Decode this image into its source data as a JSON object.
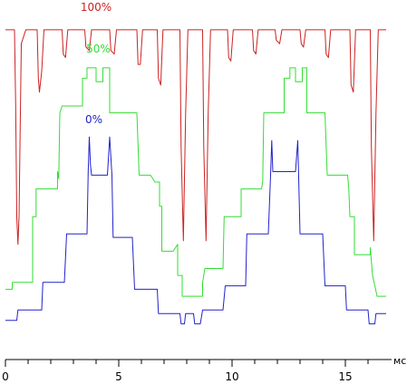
{
  "chart_data": {
    "type": "line",
    "title": "",
    "xlabel": "мс",
    "ylabel": "",
    "xlim": [
      0,
      16.8
    ],
    "ylim": [
      0,
      100
    ],
    "grid": false,
    "x_ticks": [
      0,
      5,
      10,
      15
    ],
    "series": [
      {
        "name": "100%",
        "color": "#cc2222",
        "points": [
          [
            0.0,
            94
          ],
          [
            0.4,
            94
          ],
          [
            0.45,
            72
          ],
          [
            0.5,
            40
          ],
          [
            0.55,
            32
          ],
          [
            0.6,
            40
          ],
          [
            0.7,
            90
          ],
          [
            0.9,
            94
          ],
          [
            1.4,
            94
          ],
          [
            1.45,
            80
          ],
          [
            1.5,
            76
          ],
          [
            1.6,
            82
          ],
          [
            1.7,
            94
          ],
          [
            2.5,
            94
          ],
          [
            2.55,
            87
          ],
          [
            2.65,
            86
          ],
          [
            2.75,
            94
          ],
          [
            3.5,
            94
          ],
          [
            3.55,
            89
          ],
          [
            3.7,
            88
          ],
          [
            3.8,
            94
          ],
          [
            4.6,
            94
          ],
          [
            4.65,
            88
          ],
          [
            4.8,
            87
          ],
          [
            4.9,
            94
          ],
          [
            5.8,
            94
          ],
          [
            5.85,
            84
          ],
          [
            5.95,
            84
          ],
          [
            6.05,
            94
          ],
          [
            6.7,
            94
          ],
          [
            6.75,
            80
          ],
          [
            6.85,
            78
          ],
          [
            6.95,
            94
          ],
          [
            7.7,
            94
          ],
          [
            7.75,
            60
          ],
          [
            7.85,
            33
          ],
          [
            7.95,
            70
          ],
          [
            8.05,
            94
          ],
          [
            8.7,
            94
          ],
          [
            8.75,
            60
          ],
          [
            8.85,
            33
          ],
          [
            8.95,
            70
          ],
          [
            9.05,
            94
          ],
          [
            9.8,
            94
          ],
          [
            9.85,
            86
          ],
          [
            9.95,
            85
          ],
          [
            10.05,
            94
          ],
          [
            10.9,
            94
          ],
          [
            10.95,
            88
          ],
          [
            11.05,
            87
          ],
          [
            11.15,
            94
          ],
          [
            11.9,
            94
          ],
          [
            11.95,
            91
          ],
          [
            12.1,
            90
          ],
          [
            12.2,
            94
          ],
          [
            13.0,
            94
          ],
          [
            13.05,
            90
          ],
          [
            13.15,
            89
          ],
          [
            13.25,
            94
          ],
          [
            14.1,
            94
          ],
          [
            14.15,
            87
          ],
          [
            14.25,
            86
          ],
          [
            14.35,
            94
          ],
          [
            15.2,
            94
          ],
          [
            15.25,
            78
          ],
          [
            15.35,
            76
          ],
          [
            15.45,
            94
          ],
          [
            16.1,
            94
          ],
          [
            16.15,
            60
          ],
          [
            16.25,
            33
          ],
          [
            16.35,
            70
          ],
          [
            16.45,
            94
          ],
          [
            16.8,
            94
          ]
        ]
      },
      {
        "name": "50%",
        "color": "#33dd33",
        "points": [
          [
            0.0,
            19
          ],
          [
            0.3,
            19
          ],
          [
            0.3,
            21
          ],
          [
            1.2,
            21
          ],
          [
            1.2,
            40
          ],
          [
            1.35,
            40
          ],
          [
            1.35,
            48
          ],
          [
            2.3,
            48
          ],
          [
            2.3,
            53
          ],
          [
            2.35,
            51
          ],
          [
            2.4,
            70
          ],
          [
            2.5,
            72
          ],
          [
            3.4,
            72
          ],
          [
            3.4,
            80
          ],
          [
            3.6,
            80
          ],
          [
            3.6,
            83
          ],
          [
            4.0,
            83
          ],
          [
            4.0,
            79
          ],
          [
            4.3,
            79
          ],
          [
            4.3,
            83
          ],
          [
            4.6,
            83
          ],
          [
            4.6,
            70
          ],
          [
            5.8,
            70
          ],
          [
            5.9,
            52
          ],
          [
            6.4,
            52
          ],
          [
            6.6,
            50
          ],
          [
            6.8,
            50
          ],
          [
            6.8,
            43
          ],
          [
            6.9,
            43
          ],
          [
            6.9,
            30
          ],
          [
            7.4,
            30
          ],
          [
            7.6,
            32
          ],
          [
            7.6,
            23
          ],
          [
            7.8,
            23
          ],
          [
            7.8,
            17
          ],
          [
            8.7,
            17
          ],
          [
            8.7,
            21
          ],
          [
            8.8,
            25
          ],
          [
            9.6,
            25
          ],
          [
            9.65,
            40
          ],
          [
            10.4,
            40
          ],
          [
            10.4,
            48
          ],
          [
            11.3,
            48
          ],
          [
            11.35,
            50
          ],
          [
            11.4,
            70
          ],
          [
            12.3,
            70
          ],
          [
            12.3,
            80
          ],
          [
            12.55,
            80
          ],
          [
            12.55,
            83
          ],
          [
            12.8,
            83
          ],
          [
            12.8,
            79
          ],
          [
            13.1,
            79
          ],
          [
            13.1,
            83
          ],
          [
            13.3,
            83
          ],
          [
            13.3,
            70
          ],
          [
            14.1,
            70
          ],
          [
            14.2,
            52
          ],
          [
            15.1,
            52
          ],
          [
            15.15,
            48
          ],
          [
            15.2,
            40
          ],
          [
            15.4,
            40
          ],
          [
            15.4,
            29
          ],
          [
            16.1,
            29
          ],
          [
            16.1,
            31
          ],
          [
            16.2,
            23
          ],
          [
            16.4,
            17
          ],
          [
            16.8,
            17
          ]
        ]
      },
      {
        "name": "0%",
        "color": "#2222cc",
        "points": [
          [
            0.0,
            10
          ],
          [
            0.5,
            10
          ],
          [
            0.55,
            13
          ],
          [
            1.6,
            13
          ],
          [
            1.65,
            21
          ],
          [
            2.6,
            21
          ],
          [
            2.7,
            35
          ],
          [
            3.6,
            35
          ],
          [
            3.65,
            53
          ],
          [
            3.7,
            63
          ],
          [
            3.75,
            55
          ],
          [
            3.8,
            52
          ],
          [
            4.5,
            52
          ],
          [
            4.6,
            63
          ],
          [
            4.7,
            52
          ],
          [
            4.75,
            34
          ],
          [
            5.6,
            34
          ],
          [
            5.7,
            19
          ],
          [
            6.7,
            19
          ],
          [
            6.75,
            12
          ],
          [
            7.7,
            12
          ],
          [
            7.75,
            9
          ],
          [
            7.9,
            9
          ],
          [
            7.95,
            12
          ],
          [
            8.3,
            12
          ],
          [
            8.35,
            9
          ],
          [
            8.6,
            9
          ],
          [
            8.7,
            13
          ],
          [
            9.6,
            13
          ],
          [
            9.7,
            20
          ],
          [
            10.6,
            20
          ],
          [
            10.65,
            35
          ],
          [
            11.6,
            35
          ],
          [
            11.7,
            52
          ],
          [
            11.75,
            62
          ],
          [
            11.8,
            53
          ],
          [
            12.8,
            53
          ],
          [
            12.9,
            62
          ],
          [
            12.95,
            48
          ],
          [
            13.0,
            35
          ],
          [
            14.0,
            35
          ],
          [
            14.1,
            20
          ],
          [
            15.0,
            20
          ],
          [
            15.05,
            13
          ],
          [
            16.0,
            13
          ],
          [
            16.05,
            9
          ],
          [
            16.3,
            9
          ],
          [
            16.35,
            12
          ],
          [
            16.8,
            12
          ]
        ]
      }
    ]
  }
}
